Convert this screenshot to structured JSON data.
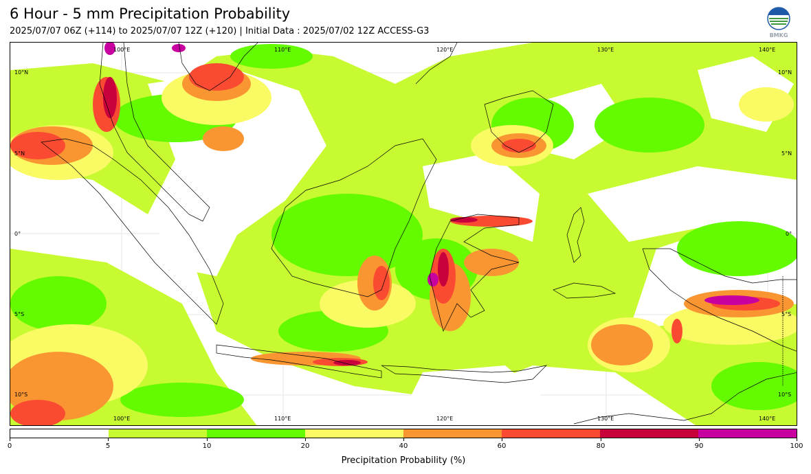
{
  "header": {
    "title": "6 Hour - 5 mm Precipitation Probability",
    "subtitle": "2025/07/07 06Z (+114) to 2025/07/07 12Z (+120) | Initial Data : 2025/07/02 12Z ACCESS-G3"
  },
  "logo": {
    "text": "BMKG",
    "icon": "bmkg-globe-logo"
  },
  "map": {
    "lon_top_labels": [
      "100°E",
      "110°E",
      "120°E",
      "130°E",
      "140°E"
    ],
    "lon_bottom_labels": [
      "100°E",
      "110°E",
      "120°E",
      "130°E",
      "140°E"
    ],
    "lat_left_labels": [
      "10°N",
      "5°N",
      "0°",
      "5°S",
      "10°S"
    ],
    "lat_right_labels": [
      "10°N",
      "5°N",
      "0°",
      "5°S",
      "10°S"
    ],
    "colors": {
      "5-10": "#c8fa32",
      "10-20": "#64fa00",
      "20-40": "#fafa64",
      "40-60": "#fa9632",
      "60-80": "#fa4b32",
      "80-90": "#c8003c",
      "90-100": "#c800a0",
      "coastline": "#000000"
    }
  },
  "colorbar": {
    "ticks": [
      "0",
      "5",
      "10",
      "20",
      "40",
      "60",
      "80",
      "90",
      "100"
    ],
    "colors": [
      "#ffffff",
      "#c8fa32",
      "#64fa00",
      "#fafa64",
      "#fa9632",
      "#fa4b32",
      "#c8003c",
      "#c800a0"
    ],
    "label": "Precipitation Probability (%)"
  }
}
